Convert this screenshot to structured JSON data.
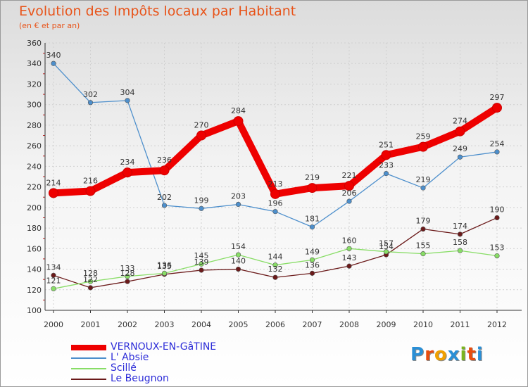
{
  "title": "Evolution des Impôts locaux par Habitant",
  "subtitle": "(en € et par an)",
  "colors": {
    "title": "#e8541a",
    "axis": "#333333",
    "grid": "#d0d0d0",
    "label": "#333333",
    "legend_text": "#2c2cd8"
  },
  "legend_labels": [
    "VERNOUX-EN-GâTINE",
    "L' Absie",
    "Scillé",
    "Le Beugnon"
  ],
  "logo": {
    "text": "Proxiti",
    "letters": [
      "P",
      "r",
      "o",
      "x",
      "i",
      "t",
      "i"
    ],
    "letter_colors": [
      "#2a8fd6",
      "#e84c0e",
      "#f0a000",
      "#2a8fd6",
      "#7ab51d",
      "#e84c0e",
      "#2a8fd6"
    ]
  },
  "chart_data": {
    "type": "line",
    "title": "Evolution des Impôts locaux par Habitant",
    "subtitle": "(en € et par an)",
    "xlabel": "",
    "ylabel": "",
    "x": [
      2000,
      2001,
      2002,
      2003,
      2004,
      2005,
      2006,
      2007,
      2008,
      2009,
      2010,
      2011,
      2012
    ],
    "xticks": [
      "2000",
      "2001",
      "2002",
      "2003",
      "2004",
      "2005",
      "2006",
      "2007",
      "2008",
      "2009",
      "2010",
      "2011",
      "2012"
    ],
    "ylim": [
      100,
      360
    ],
    "yticks": [
      "100",
      "120",
      "140",
      "160",
      "180",
      "200",
      "220",
      "240",
      "260",
      "280",
      "300",
      "320",
      "340",
      "360"
    ],
    "grid": true,
    "legend_position": "bottom-left",
    "series": [
      {
        "name": "VERNOUX-EN-GâTINE",
        "color": "#ee0000",
        "values": [
          214,
          216,
          234,
          236,
          270,
          284,
          213,
          219,
          221,
          251,
          259,
          274,
          297
        ],
        "labels": [
          "214",
          "216",
          "234",
          "236",
          "270",
          "284",
          "213",
          "219",
          "221",
          "251",
          "259",
          "274",
          "297"
        ]
      },
      {
        "name": "L' Absie",
        "color": "#4d8fcc",
        "values": [
          340,
          302,
          304,
          202,
          199,
          203,
          196,
          181,
          206,
          233,
          219,
          249,
          254
        ],
        "labels": [
          "340",
          "302",
          "304",
          "202",
          "199",
          "203",
          "196",
          "181",
          "206",
          "233",
          "219",
          "249",
          "254"
        ]
      },
      {
        "name": "Scillé",
        "color": "#88dd66",
        "values": [
          121,
          128,
          133,
          136,
          145,
          154,
          144,
          149,
          160,
          157,
          155,
          158,
          153
        ],
        "labels": [
          "121",
          "128",
          "133",
          "136",
          "145",
          "154",
          "144",
          "149",
          "160",
          "157",
          "155",
          "158",
          "153"
        ]
      },
      {
        "name": "Le Beugnon",
        "color": "#6b1a1a",
        "values": [
          134,
          122,
          128,
          135,
          139,
          140,
          132,
          136,
          143,
          154,
          179,
          174,
          190
        ],
        "labels": [
          "134",
          "122",
          "128",
          "135",
          "139",
          "140",
          "132",
          "136",
          "143",
          "154",
          "179",
          "174",
          "190"
        ]
      }
    ]
  }
}
